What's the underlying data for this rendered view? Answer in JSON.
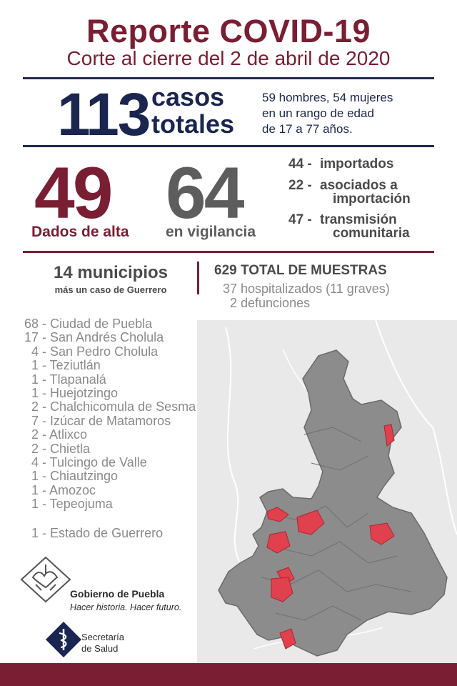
{
  "header": {
    "title": "Reporte COVID-19",
    "subtitle": "Corte al cierre del 2 de abril de 2020"
  },
  "totals": {
    "number": "113",
    "label_line1": "casos",
    "label_line2": "totales",
    "desc_line1": "59 hombres, 54 mujeres",
    "desc_line2": "en un rango de edad",
    "desc_line3": "de 17 a 77 años."
  },
  "status": {
    "discharged_number": "49",
    "discharged_label": "Dados de alta",
    "monitoring_number": "64",
    "monitoring_label": "en vigilancia"
  },
  "breakdown": [
    {
      "num": "44 -",
      "line1": "importados",
      "line2": ""
    },
    {
      "num": "22 -",
      "line1": "asociados a",
      "line2": "importación"
    },
    {
      "num": "47 -",
      "line1": "transmisión",
      "line2": "comunitaria"
    }
  ],
  "municipios": {
    "title": "14 municipios",
    "subtitle": "más un caso de Guerrero"
  },
  "muestras": {
    "total": "629 TOTAL DE MUESTRAS",
    "hospitalizados": "37 hospitalizados (11 graves)",
    "defunciones": "2 defunciones"
  },
  "municipality_list": [
    "68 - Ciudad de Puebla",
    "17 - San Andrés Cholula",
    " 4 - San Pedro Cholula",
    " 1 - Teziutlán",
    " 1 - Tlapanalá",
    " 1 - Huejotzingo",
    " 2 - Chalchicomula de Sesma",
    " 7 - Izúcar de Matamoros",
    " 2 - Atlixco",
    " 2 - Chietla",
    " 4 - Tulcingo de Valle",
    " 1 - Chiautzingo",
    " 1 - Amozoc",
    " 1 - Tepeojuma"
  ],
  "guerrero_line": "1 - Estado de Guerrero",
  "footer": {
    "gov_name": "Gobierno de Puebla",
    "gov_slogan": "Hacer historia. Hacer futuro.",
    "secretaria_line1": "Secretaría",
    "secretaria_line2": "de Salud"
  },
  "colors": {
    "brand_maroon": "#7a1e33",
    "navy": "#1a2550",
    "gray_text": "#5d5d5d",
    "map_gray": "#8c8c8c",
    "map_highlight": "#e0414d"
  }
}
